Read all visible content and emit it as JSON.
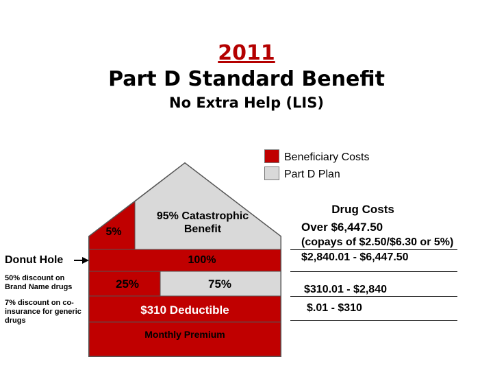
{
  "colors": {
    "beneficiary": "#c00000",
    "plan": "#d9d9d9",
    "title_year": "#b40000"
  },
  "title": {
    "year": "2011",
    "main": "Part D Standard Benefit",
    "sub": "No Extra Help (LIS)"
  },
  "legend": {
    "beneficiary": "Beneficiary Costs",
    "plan": "Part D Plan"
  },
  "house": {
    "catastrophic_beneficiary": "5%",
    "catastrophic_plan": "95% Catastrophic Benefit",
    "donut": "100%",
    "initial_beneficiary": "25%",
    "initial_plan": "75%",
    "deductible": "$310 Deductible",
    "premium": "Monthly Premium"
  },
  "left_notes": {
    "donut_hole": "Donut Hole",
    "brand_discount": "50% discount on Brand Name drugs",
    "generic_discount": "7% discount on co-insurance for generic drugs"
  },
  "drug_costs": {
    "header": "Drug Costs",
    "catastrophic_line1": "Over $6,447.50",
    "catastrophic_line2": "(copays of $2.50/$6.30 or 5%)",
    "donut": "$2,840.01 - $6,447.50",
    "initial": "$310.01 - $2,840",
    "deductible": "$.01 - $310"
  }
}
